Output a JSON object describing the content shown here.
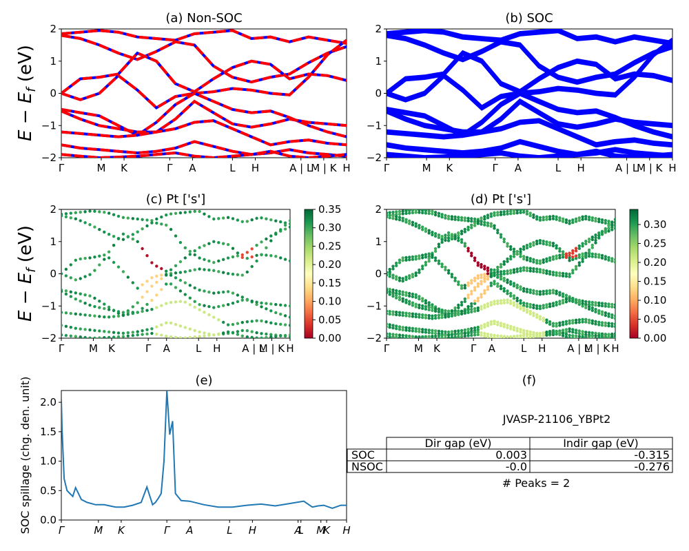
{
  "chart_data": [
    {
      "id": "a",
      "type": "line",
      "title": "(a) Non-SOC",
      "ylabel": "E − E_f (eV)",
      "ylim": [
        -2,
        2
      ],
      "yticks": [
        "−2",
        "−1",
        "0",
        "1",
        "2"
      ],
      "xticks": [
        "Γ",
        "M",
        "K",
        "Γ",
        "A",
        "L",
        "H",
        "A | L",
        "M | K",
        "H"
      ],
      "colors": [
        "#ff0000",
        "#0000ff"
      ],
      "series_style": "red dashed over blue",
      "bands": [
        [
          1.85,
          1.9,
          1.95,
          1.9,
          1.75,
          1.7,
          1.65,
          1.85,
          1.9,
          1.95,
          1.7,
          1.75,
          1.6,
          1.75,
          1.65,
          1.55
        ],
        [
          1.8,
          1.7,
          1.5,
          1.25,
          1.05,
          1.3,
          1.6,
          1.5,
          0.85,
          0.5,
          0.35,
          0.5,
          0.6,
          0.95,
          1.25,
          1.45
        ],
        [
          0.0,
          0.45,
          0.5,
          0.6,
          1.25,
          1.0,
          0.3,
          0.05,
          0.45,
          0.8,
          1.0,
          0.9,
          0.45,
          0.6,
          0.55,
          0.4
        ],
        [
          0.0,
          -0.2,
          0.0,
          0.55,
          0.1,
          -0.45,
          -0.1,
          0.0,
          0.05,
          0.15,
          0.1,
          0.0,
          -0.05,
          0.5,
          1.2,
          1.65
        ],
        [
          -0.5,
          -0.6,
          -0.7,
          -1.0,
          -1.3,
          -0.9,
          -0.35,
          0.0,
          -0.25,
          -0.5,
          -0.6,
          -0.55,
          -0.75,
          -1.0,
          -1.2,
          -1.35
        ],
        [
          -0.55,
          -0.8,
          -1.0,
          -1.1,
          -1.2,
          -1.2,
          -0.8,
          -0.25,
          -0.6,
          -0.95,
          -1.05,
          -0.95,
          -0.8,
          -0.9,
          -0.95,
          -1.0
        ],
        [
          -1.2,
          -1.25,
          -1.3,
          -1.35,
          -1.3,
          -1.2,
          -1.1,
          -0.9,
          -0.85,
          -1.1,
          -1.35,
          -1.6,
          -1.5,
          -1.45,
          -1.55,
          -1.6
        ],
        [
          -1.6,
          -1.7,
          -1.75,
          -1.8,
          -1.85,
          -1.8,
          -1.7,
          -1.5,
          -1.65,
          -1.8,
          -1.9,
          -1.85,
          -1.75,
          -1.85,
          -1.9,
          -1.95
        ],
        [
          -1.9,
          -1.95,
          -2.0,
          -1.98,
          -1.95,
          -1.9,
          -1.85,
          -1.95,
          -2.0,
          -1.95,
          -1.9,
          -1.8,
          -1.95,
          -2.0,
          -1.95,
          -1.9
        ]
      ]
    },
    {
      "id": "b",
      "type": "line",
      "title": "(b) SOC",
      "ylim": [
        -2,
        2
      ],
      "yticks": [
        "−2",
        "−1",
        "0",
        "1",
        "2"
      ],
      "xticks": [
        "Γ",
        "M",
        "K",
        "Γ",
        "A",
        "L",
        "H",
        "A | L",
        "M | K",
        "H"
      ],
      "colors": [
        "#0000ff"
      ]
    },
    {
      "id": "c",
      "type": "scatter",
      "title": "(c)  Pt ['s']",
      "ylabel": "E − E_f (eV)",
      "ylim": [
        -2,
        2
      ],
      "yticks": [
        "−2",
        "−1",
        "0",
        "1",
        "2"
      ],
      "xticks": [
        "Γ",
        "M",
        "K",
        "Γ",
        "A",
        "L",
        "H",
        "A | L",
        "M | K",
        "H"
      ],
      "colorbar_ticks": [
        "0.00",
        "0.05",
        "0.10",
        "0.15",
        "0.20",
        "0.25",
        "0.30",
        "0.35"
      ],
      "colorbar_max": 0.35,
      "colormap": [
        "#a50026",
        "#d73027",
        "#f46d43",
        "#fdae61",
        "#fee08b",
        "#ffffbf",
        "#d9ef8b",
        "#a6d96a",
        "#66bd63",
        "#1a9850",
        "#006837"
      ]
    },
    {
      "id": "d",
      "type": "scatter",
      "title": "(d) Pt ['s']",
      "ylim": [
        -2,
        2
      ],
      "yticks": [
        "−2",
        "−1",
        "0",
        "1",
        "2"
      ],
      "xticks": [
        "Γ",
        "M",
        "K",
        "Γ",
        "A",
        "L",
        "H",
        "A | L",
        "M | K",
        "H"
      ],
      "colorbar_ticks": [
        "0.00",
        "0.05",
        "0.10",
        "0.15",
        "0.20",
        "0.25",
        "0.30"
      ],
      "colorbar_max": 0.34,
      "colormap": [
        "#a50026",
        "#d73027",
        "#f46d43",
        "#fdae61",
        "#fee08b",
        "#ffffbf",
        "#d9ef8b",
        "#a6d96a",
        "#66bd63",
        "#1a9850",
        "#006837"
      ]
    },
    {
      "id": "e",
      "type": "line",
      "title": "(e)",
      "ylabel": "SOC spillage (chg. den. unit)",
      "ylim": [
        0,
        2.2
      ],
      "yticks": [
        0.0,
        0.5,
        1.0,
        1.5,
        2.0
      ],
      "ytick_labels": [
        "0.0",
        "0.5",
        "1.0",
        "1.5",
        "2.0"
      ],
      "xticks": [
        "Γ",
        "M",
        "K",
        "Γ",
        "A",
        "L",
        "H",
        "A",
        "L",
        "M",
        "K",
        "H"
      ],
      "color": "#1f77b4",
      "x": [
        0,
        0.3,
        1,
        2,
        3,
        4,
        5,
        7,
        9,
        12,
        15,
        17,
        19,
        22,
        25,
        28,
        30,
        32,
        33,
        34,
        35,
        36,
        37,
        38,
        39,
        40,
        42,
        45,
        50,
        55,
        60,
        65,
        70,
        75,
        80,
        85,
        88,
        90,
        92,
        95,
        98,
        100
      ],
      "values": [
        2.05,
        1.5,
        0.7,
        0.5,
        0.45,
        0.4,
        0.55,
        0.35,
        0.3,
        0.26,
        0.26,
        0.24,
        0.22,
        0.22,
        0.25,
        0.3,
        0.56,
        0.26,
        0.3,
        0.37,
        0.45,
        1.0,
        2.2,
        1.45,
        1.68,
        0.45,
        0.33,
        0.32,
        0.26,
        0.22,
        0.22,
        0.25,
        0.27,
        0.24,
        0.28,
        0.32,
        0.22,
        0.24,
        0.25,
        0.2,
        0.25,
        0.25
      ],
      "xtick_positions": [
        0,
        13,
        21,
        37,
        45,
        59,
        67,
        83,
        84,
        91,
        93,
        100
      ]
    }
  ],
  "table": {
    "title": "(f)",
    "subtitle": "JVASP-21106_YBPt2",
    "headers": [
      "",
      "Dir gap (eV)",
      "Indir gap (eV)"
    ],
    "rows": [
      [
        "SOC",
        "0.003",
        "-0.315"
      ],
      [
        "NSOC",
        "-0.0",
        "-0.276"
      ]
    ],
    "footer": "# Peaks = 2"
  }
}
